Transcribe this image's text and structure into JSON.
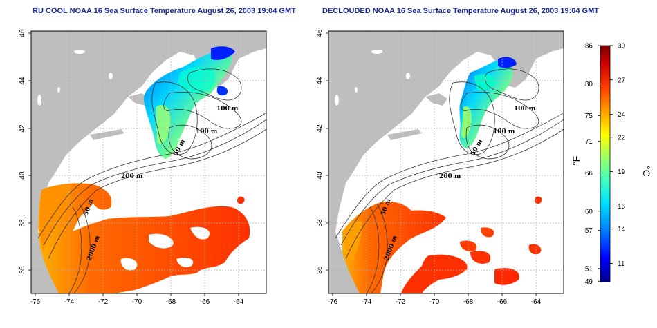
{
  "panels": [
    {
      "id": "left",
      "title": "RU COOL NOAA 16 Sea Surface Temperature August 26, 2003 19:04 GMT",
      "contour_labels": [
        "100 m",
        "100 m",
        "50 m",
        "200 m",
        "50 m",
        "2000 m"
      ]
    },
    {
      "id": "right",
      "title": "DECLOUDED NOAA 16 Sea Surface Temperature August 26, 2003 19:04 GMT",
      "contour_labels": [
        "100 m",
        "100 m",
        "50 m",
        "200 m",
        "50 m",
        "2000 m"
      ]
    }
  ],
  "axes": {
    "lon_ticks": [
      "-76",
      "-74",
      "-72",
      "-70",
      "-68",
      "-66",
      "-64"
    ],
    "lat_ticks": [
      "36",
      "38",
      "40",
      "42",
      "44",
      "46"
    ]
  },
  "colorbar": {
    "fahrenheit_ticks": [
      "86",
      "80",
      "75",
      "71",
      "66",
      "60",
      "57",
      "51",
      "49"
    ],
    "celsius_ticks": [
      "30",
      "27",
      "24",
      "22",
      "19",
      "16",
      "14",
      "11"
    ],
    "fahrenheit_unit": "°F",
    "celsius_unit": "°C",
    "range_c": [
      9.4,
      30
    ],
    "colors": [
      "#00008f",
      "#0000ff",
      "#0080ff",
      "#00e0ff",
      "#40ffc0",
      "#a0ff60",
      "#ffff00",
      "#ffa000",
      "#ff4000",
      "#d00000",
      "#800000"
    ]
  },
  "colors": {
    "land": "#bebebe",
    "ocean_no_data": "#ffffff",
    "grid": "#b0b0b0",
    "title": "#1a2a9a"
  }
}
